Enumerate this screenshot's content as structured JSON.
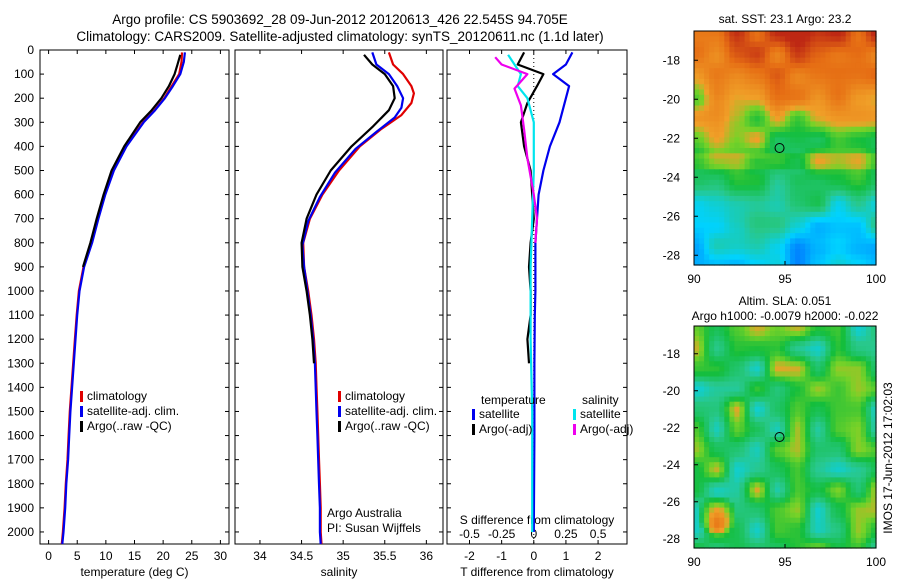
{
  "header": {
    "line1": "Argo profile: CS 5903692_28 09-Jun-2012 20120613_426 22.545S 94.705E",
    "line2": "Climatology: CARS2009. Satellite-adjusted climatology: synTS_20120611.nc (1.1d later)"
  },
  "colors": {
    "climatology": "#e00000",
    "satellite": "#0000ee",
    "argo": "#000000",
    "cyan": "#00e5ee",
    "magenta": "#ee00ee"
  },
  "chart_data": [
    {
      "id": "temperature",
      "type": "line",
      "xlabel": "temperature (deg C)",
      "ylabel": "",
      "xlim": [
        -1.5,
        31.5
      ],
      "ylim": [
        0,
        2050
      ],
      "xticks": [
        0,
        5,
        10,
        15,
        20,
        25,
        30
      ],
      "yticks": [
        0,
        100,
        200,
        300,
        400,
        500,
        600,
        700,
        800,
        900,
        1000,
        1100,
        1200,
        1300,
        1400,
        1500,
        1600,
        1700,
        1800,
        1900,
        2000
      ],
      "y_reversed": true,
      "legend": [
        "climatology",
        "satellite-adj. clim.",
        "Argo(..raw -QC)"
      ],
      "series": [
        {
          "name": "climatology",
          "color": "#e00000",
          "points": [
            [
              23.3,
              10
            ],
            [
              23.2,
              50
            ],
            [
              22.8,
              100
            ],
            [
              21.5,
              150
            ],
            [
              20.2,
              200
            ],
            [
              18.5,
              250
            ],
            [
              16.5,
              300
            ],
            [
              13.5,
              400
            ],
            [
              11.3,
              500
            ],
            [
              9.8,
              600
            ],
            [
              8.6,
              700
            ],
            [
              7.5,
              800
            ],
            [
              6.1,
              900
            ],
            [
              5.3,
              1000
            ],
            [
              4.9,
              1100
            ],
            [
              4.6,
              1200
            ],
            [
              4.3,
              1300
            ],
            [
              4.0,
              1400
            ],
            [
              3.7,
              1500
            ],
            [
              3.5,
              1600
            ],
            [
              3.3,
              1700
            ],
            [
              3.0,
              1800
            ],
            [
              2.8,
              1900
            ],
            [
              2.5,
              2000
            ],
            [
              2.3,
              2050
            ]
          ]
        },
        {
          "name": "satellite-adj. clim.",
          "color": "#0000ee",
          "points": [
            [
              23.8,
              10
            ],
            [
              23.6,
              50
            ],
            [
              23.0,
              100
            ],
            [
              21.7,
              150
            ],
            [
              20.3,
              200
            ],
            [
              18.6,
              250
            ],
            [
              16.6,
              300
            ],
            [
              13.6,
              400
            ],
            [
              11.4,
              500
            ],
            [
              9.9,
              600
            ],
            [
              8.7,
              700
            ],
            [
              7.6,
              800
            ],
            [
              6.2,
              900
            ],
            [
              5.4,
              1000
            ],
            [
              5.0,
              1100
            ],
            [
              4.7,
              1200
            ],
            [
              4.4,
              1300
            ],
            [
              4.1,
              1400
            ],
            [
              3.8,
              1500
            ],
            [
              3.6,
              1600
            ],
            [
              3.4,
              1700
            ],
            [
              3.1,
              1800
            ],
            [
              2.9,
              1900
            ],
            [
              2.6,
              2000
            ],
            [
              2.4,
              2050
            ]
          ]
        },
        {
          "name": "Argo(..raw -QC)",
          "color": "#000000",
          "points": [
            [
              23.0,
              20
            ],
            [
              22.5,
              60
            ],
            [
              22.0,
              100
            ],
            [
              21.0,
              150
            ],
            [
              19.7,
              200
            ],
            [
              18.0,
              250
            ],
            [
              16.0,
              300
            ],
            [
              13.2,
              400
            ],
            [
              11.0,
              500
            ],
            [
              9.6,
              600
            ],
            [
              8.4,
              700
            ],
            [
              7.3,
              800
            ],
            [
              6.0,
              900
            ]
          ]
        }
      ]
    },
    {
      "id": "salinity",
      "type": "line",
      "xlabel": "salinity",
      "ylabel": "",
      "xlim": [
        33.7,
        36.2
      ],
      "ylim": [
        0,
        2050
      ],
      "xticks": [
        34,
        34.5,
        35,
        35.5,
        36
      ],
      "y_reversed": true,
      "legend": [
        "climatology",
        "satellite-adj. clim.",
        "Argo(..raw -QC)"
      ],
      "annotation": [
        "Argo Australia",
        "PI: Susan Wijffels"
      ],
      "series": [
        {
          "name": "climatology",
          "color": "#e00000",
          "points": [
            [
              35.55,
              10
            ],
            [
              35.6,
              60
            ],
            [
              35.72,
              100
            ],
            [
              35.82,
              150
            ],
            [
              35.85,
              180
            ],
            [
              35.82,
              220
            ],
            [
              35.7,
              270
            ],
            [
              35.45,
              330
            ],
            [
              35.2,
              400
            ],
            [
              34.95,
              500
            ],
            [
              34.75,
              600
            ],
            [
              34.6,
              700
            ],
            [
              34.52,
              800
            ],
            [
              34.53,
              900
            ],
            [
              34.58,
              1000
            ],
            [
              34.62,
              1100
            ],
            [
              34.65,
              1200
            ],
            [
              34.67,
              1300
            ],
            [
              34.68,
              1400
            ],
            [
              34.69,
              1500
            ],
            [
              34.7,
              1600
            ],
            [
              34.71,
              1700
            ],
            [
              34.72,
              1800
            ],
            [
              34.73,
              1900
            ],
            [
              34.73,
              2000
            ],
            [
              34.74,
              2050
            ]
          ]
        },
        {
          "name": "satellite-adj. clim.",
          "color": "#0000ee",
          "points": [
            [
              35.35,
              10
            ],
            [
              35.4,
              60
            ],
            [
              35.55,
              100
            ],
            [
              35.65,
              150
            ],
            [
              35.72,
              200
            ],
            [
              35.7,
              240
            ],
            [
              35.62,
              280
            ],
            [
              35.4,
              340
            ],
            [
              35.15,
              410
            ],
            [
              34.9,
              510
            ],
            [
              34.72,
              610
            ],
            [
              34.58,
              710
            ],
            [
              34.51,
              810
            ],
            [
              34.53,
              900
            ],
            [
              34.57,
              1000
            ],
            [
              34.61,
              1100
            ],
            [
              34.64,
              1200
            ],
            [
              34.66,
              1300
            ],
            [
              34.67,
              1400
            ],
            [
              34.68,
              1500
            ],
            [
              34.69,
              1600
            ],
            [
              34.7,
              1700
            ],
            [
              34.71,
              1800
            ],
            [
              34.72,
              1900
            ],
            [
              34.72,
              2000
            ],
            [
              34.73,
              2050
            ]
          ]
        },
        {
          "name": "Argo(..raw -QC)",
          "color": "#000000",
          "points": [
            [
              35.25,
              20
            ],
            [
              35.35,
              60
            ],
            [
              35.5,
              100
            ],
            [
              35.6,
              150
            ],
            [
              35.62,
              200
            ],
            [
              35.55,
              250
            ],
            [
              35.35,
              320
            ],
            [
              35.1,
              400
            ],
            [
              34.85,
              500
            ],
            [
              34.68,
              600
            ],
            [
              34.56,
              700
            ],
            [
              34.5,
              800
            ],
            [
              34.51,
              900
            ],
            [
              34.56,
              1000
            ],
            [
              34.6,
              1100
            ],
            [
              34.63,
              1200
            ],
            [
              34.65,
              1300
            ]
          ]
        }
      ]
    },
    {
      "id": "differences",
      "type": "line",
      "xlabel": "T difference from climatology",
      "xlabel_top": "S difference from climatology",
      "xlim": [
        -2.7,
        2.9
      ],
      "ylim": [
        0,
        2050
      ],
      "xticks": [
        -2,
        -1,
        0,
        1,
        2
      ],
      "xticks_s": [
        "-0.5",
        "-0.25",
        "0",
        "0.25",
        "0.5"
      ],
      "y_reversed": true,
      "legend_headers": [
        "temperature",
        "salinity"
      ],
      "legend": [
        [
          "satellite",
          "Argo(-adj)"
        ],
        [
          "satellite",
          "Argo(-adj)"
        ]
      ],
      "series": [
        {
          "name": "temperature satellite",
          "color": "#0000ee",
          "points": [
            [
              1.2,
              10
            ],
            [
              1.0,
              60
            ],
            [
              0.6,
              100
            ],
            [
              1.1,
              150
            ],
            [
              1.0,
              200
            ],
            [
              0.8,
              300
            ],
            [
              0.5,
              400
            ],
            [
              0.3,
              500
            ],
            [
              0.15,
              600
            ],
            [
              0.1,
              700
            ],
            [
              0.05,
              800
            ],
            [
              0.05,
              900
            ],
            [
              0.05,
              1000
            ],
            [
              0.03,
              1100
            ],
            [
              0.02,
              1300
            ],
            [
              0.02,
              1600
            ],
            [
              0.0,
              2000
            ]
          ]
        },
        {
          "name": "temperature Argo(-adj)",
          "color": "#000000",
          "points": [
            [
              -0.3,
              10
            ],
            [
              -0.5,
              60
            ],
            [
              0.3,
              100
            ],
            [
              0.1,
              150
            ],
            [
              -0.2,
              220
            ],
            [
              -0.4,
              300
            ],
            [
              -0.3,
              400
            ],
            [
              -0.1,
              500
            ],
            [
              0.0,
              700
            ],
            [
              -0.1,
              800
            ],
            [
              -0.15,
              900
            ],
            [
              -0.1,
              1000
            ],
            [
              -0.1,
              1100
            ],
            [
              -0.2,
              1200
            ],
            [
              -0.15,
              1300
            ]
          ]
        },
        {
          "name": "salinity satellite",
          "color": "#00e5ee",
          "points": [
            [
              -0.8,
              20
            ],
            [
              -0.6,
              60
            ],
            [
              -0.4,
              100
            ],
            [
              -0.5,
              150
            ],
            [
              -0.2,
              200
            ],
            [
              0.0,
              300
            ],
            [
              0.0,
              500
            ],
            [
              -0.05,
              700
            ],
            [
              -0.1,
              900
            ],
            [
              -0.1,
              1000
            ],
            [
              -0.1,
              1200
            ],
            [
              -0.05,
              1500
            ],
            [
              -0.05,
              1800
            ],
            [
              -0.05,
              2000
            ]
          ]
        },
        {
          "name": "salinity Argo(-adj)",
          "color": "#ee00ee",
          "points": [
            [
              -1.2,
              30
            ],
            [
              -1.0,
              60
            ],
            [
              -0.2,
              100
            ],
            [
              -0.6,
              160
            ],
            [
              -0.4,
              230
            ],
            [
              -0.3,
              330
            ],
            [
              -0.2,
              450
            ],
            [
              0.0,
              600
            ],
            [
              0.1,
              700
            ],
            [
              0.05,
              800
            ]
          ]
        }
      ]
    },
    {
      "id": "sst_map",
      "type": "heatmap",
      "title": "sat. SST: 23.1  Argo: 23.2",
      "xlim": [
        90,
        100
      ],
      "ylim": [
        -28.5,
        -16.5
      ],
      "xticks": [
        90,
        95,
        100
      ],
      "yticks": [
        -18,
        -20,
        -22,
        -24,
        -26,
        -28
      ],
      "marker": [
        94.7,
        -22.5
      ]
    },
    {
      "id": "sla_map",
      "type": "heatmap",
      "title": "Altim. SLA: 0.051",
      "subtitle": "Argo h1000: -0.0079  h2000: -0.022",
      "xlim": [
        90,
        100
      ],
      "ylim": [
        -28.5,
        -16.5
      ],
      "xticks": [
        90,
        95,
        100
      ],
      "yticks": [
        -18,
        -20,
        -22,
        -24,
        -26,
        -28
      ],
      "marker": [
        94.7,
        -22.5
      ]
    }
  ],
  "side_stamp": "IMOS 17-Jun-2012 17:02:03"
}
